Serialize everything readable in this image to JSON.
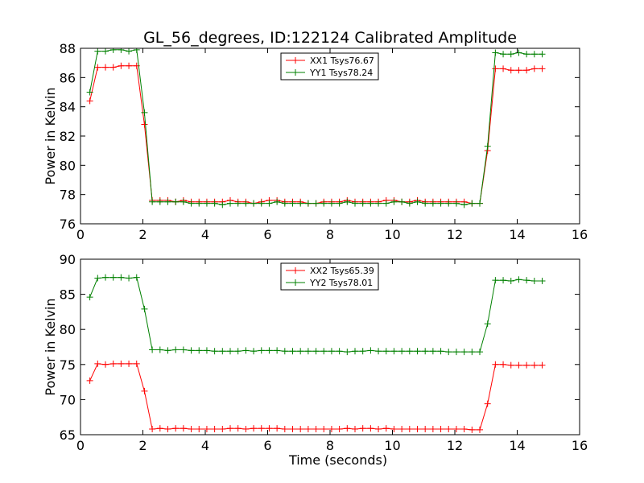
{
  "title": "GL_56_degrees, ID:122124 Calibrated Amplitude",
  "chart_data": [
    {
      "type": "line",
      "ylabel": "Power in Kelvin",
      "xlabel": "",
      "xlim": [
        0,
        16
      ],
      "ylim": [
        76,
        88
      ],
      "xticks": [
        "0",
        "2",
        "4",
        "6",
        "8",
        "10",
        "12",
        "14",
        "16"
      ],
      "yticks": [
        "76",
        "78",
        "80",
        "82",
        "84",
        "86",
        "88"
      ],
      "legend_position": "top-center",
      "grid": false,
      "x": [
        0.3,
        0.55,
        0.8,
        1.05,
        1.3,
        1.55,
        1.8,
        2.05,
        2.3,
        2.55,
        2.8,
        3.05,
        3.3,
        3.55,
        3.8,
        4.05,
        4.3,
        4.55,
        4.8,
        5.05,
        5.3,
        5.55,
        5.8,
        6.05,
        6.3,
        6.55,
        6.8,
        7.05,
        7.3,
        7.55,
        7.8,
        8.05,
        8.3,
        8.55,
        8.8,
        9.05,
        9.3,
        9.55,
        9.8,
        10.05,
        10.3,
        10.55,
        10.8,
        11.05,
        11.3,
        11.55,
        11.8,
        12.05,
        12.3,
        12.55,
        12.8,
        13.05,
        13.3,
        13.55,
        13.8,
        14.05,
        14.3,
        14.55,
        14.8
      ],
      "series": [
        {
          "name": "XX1 Tsys76.67",
          "color": "#ff0000",
          "values": [
            84.4,
            86.7,
            86.7,
            86.7,
            86.8,
            86.8,
            86.8,
            82.8,
            77.6,
            77.6,
            77.6,
            77.5,
            77.6,
            77.5,
            77.5,
            77.5,
            77.5,
            77.5,
            77.6,
            77.5,
            77.5,
            77.4,
            77.5,
            77.6,
            77.6,
            77.5,
            77.5,
            77.5,
            77.4,
            77.4,
            77.5,
            77.5,
            77.5,
            77.6,
            77.5,
            77.5,
            77.5,
            77.5,
            77.6,
            77.6,
            77.5,
            77.5,
            77.6,
            77.5,
            77.5,
            77.5,
            77.5,
            77.5,
            77.5,
            77.4,
            77.4,
            81.0,
            86.6,
            86.6,
            86.5,
            86.5,
            86.5,
            86.6,
            86.6
          ]
        },
        {
          "name": "YY1 Tsys78.24",
          "color": "#008000",
          "values": [
            85.0,
            87.8,
            87.8,
            87.9,
            87.9,
            87.8,
            87.9,
            83.6,
            77.5,
            77.5,
            77.5,
            77.5,
            77.5,
            77.4,
            77.4,
            77.4,
            77.4,
            77.3,
            77.4,
            77.4,
            77.4,
            77.4,
            77.4,
            77.4,
            77.5,
            77.4,
            77.4,
            77.4,
            77.4,
            77.4,
            77.4,
            77.4,
            77.4,
            77.5,
            77.4,
            77.4,
            77.4,
            77.4,
            77.4,
            77.5,
            77.5,
            77.4,
            77.5,
            77.4,
            77.4,
            77.4,
            77.4,
            77.4,
            77.3,
            77.4,
            77.4,
            81.3,
            87.7,
            87.6,
            87.6,
            87.7,
            87.6,
            87.6,
            87.6
          ]
        }
      ]
    },
    {
      "type": "line",
      "ylabel": "Power in Kelvin",
      "xlabel": "Time (seconds)",
      "xlim": [
        0,
        16
      ],
      "ylim": [
        65,
        90
      ],
      "xticks": [
        "0",
        "2",
        "4",
        "6",
        "8",
        "10",
        "12",
        "14",
        "16"
      ],
      "yticks": [
        "65",
        "70",
        "75",
        "80",
        "85",
        "90"
      ],
      "legend_position": "top-center",
      "grid": false,
      "x": [
        0.3,
        0.55,
        0.8,
        1.05,
        1.3,
        1.55,
        1.8,
        2.05,
        2.3,
        2.55,
        2.8,
        3.05,
        3.3,
        3.55,
        3.8,
        4.05,
        4.3,
        4.55,
        4.8,
        5.05,
        5.3,
        5.55,
        5.8,
        6.05,
        6.3,
        6.55,
        6.8,
        7.05,
        7.3,
        7.55,
        7.8,
        8.05,
        8.3,
        8.55,
        8.8,
        9.05,
        9.3,
        9.55,
        9.8,
        10.05,
        10.3,
        10.55,
        10.8,
        11.05,
        11.3,
        11.55,
        11.8,
        12.05,
        12.3,
        12.55,
        12.8,
        13.05,
        13.3,
        13.55,
        13.8,
        14.05,
        14.3,
        14.55,
        14.8
      ],
      "series": [
        {
          "name": "XX2 Tsys65.39",
          "color": "#ff0000",
          "values": [
            72.7,
            75.1,
            75.0,
            75.1,
            75.1,
            75.1,
            75.1,
            71.2,
            65.8,
            65.9,
            65.8,
            65.9,
            65.9,
            65.8,
            65.8,
            65.8,
            65.8,
            65.8,
            65.9,
            65.9,
            65.8,
            65.9,
            65.9,
            65.9,
            65.9,
            65.8,
            65.8,
            65.8,
            65.8,
            65.8,
            65.8,
            65.8,
            65.8,
            65.9,
            65.8,
            65.9,
            65.9,
            65.8,
            65.9,
            65.8,
            65.8,
            65.8,
            65.8,
            65.8,
            65.8,
            65.8,
            65.8,
            65.8,
            65.8,
            65.7,
            65.7,
            69.4,
            75.0,
            75.0,
            74.9,
            74.9,
            74.9,
            74.9,
            74.9
          ]
        },
        {
          "name": "YY2 Tsys78.01",
          "color": "#008000",
          "values": [
            84.6,
            87.3,
            87.4,
            87.4,
            87.4,
            87.3,
            87.4,
            82.9,
            77.1,
            77.1,
            77.0,
            77.1,
            77.1,
            77.0,
            77.0,
            77.0,
            76.9,
            76.9,
            76.9,
            76.9,
            77.0,
            76.9,
            77.0,
            77.0,
            77.0,
            76.9,
            76.9,
            76.9,
            76.9,
            76.9,
            76.9,
            76.9,
            76.9,
            76.8,
            76.9,
            76.9,
            77.0,
            76.9,
            76.9,
            76.9,
            76.9,
            76.9,
            76.9,
            76.9,
            76.9,
            76.9,
            76.8,
            76.8,
            76.8,
            76.8,
            76.8,
            80.8,
            87.0,
            87.0,
            86.9,
            87.1,
            87.0,
            86.9,
            86.9
          ]
        }
      ]
    }
  ]
}
